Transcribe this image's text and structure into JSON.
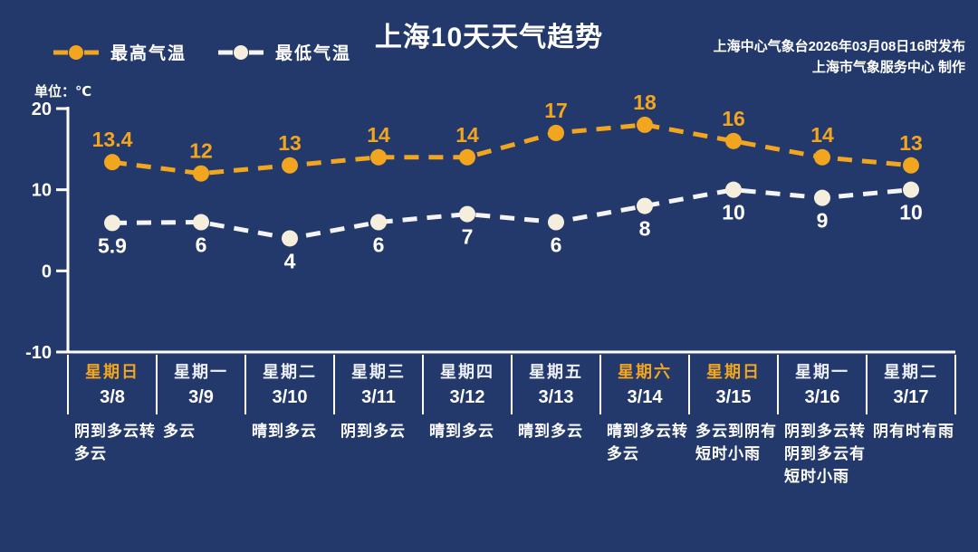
{
  "header": {
    "title": "上海10天天气趋势",
    "source_line1": "上海中心气象台2026年03月08日16时发布",
    "source_line2": "上海市气象服务中心  制作"
  },
  "colors": {
    "background": "#24396b",
    "high_temp": "#f2a61f",
    "low_temp_dot": "#f5eedd",
    "low_temp_line": "#f4f4f4",
    "axis": "#ffffff",
    "weekend_text": "#f2a61f",
    "weekday_text": "#eef0f8",
    "date_text": "#ffffff",
    "weather_text": "#ffffff"
  },
  "chart_data": {
    "type": "line",
    "title": "上海10天天气趋势",
    "ylabel": "单位：℃",
    "ylim": [
      -10,
      20
    ],
    "yticks": [
      20,
      10,
      0,
      -10
    ],
    "grid": false,
    "legend_position": "top-left",
    "x": [
      "3/8",
      "3/9",
      "3/10",
      "3/11",
      "3/12",
      "3/13",
      "3/14",
      "3/15",
      "3/16",
      "3/17"
    ],
    "series": [
      {
        "name": "最高气温",
        "values": [
          13.4,
          12,
          13,
          14,
          14,
          17,
          18,
          16,
          14,
          13
        ],
        "line_color": "#f2a61f",
        "dot_color": "#f2a61f",
        "label_color": "#f2a61f"
      },
      {
        "name": "最低气温",
        "values": [
          5.9,
          6,
          4,
          6,
          7,
          6,
          8,
          10,
          9,
          10
        ],
        "line_color": "#f4f4f4",
        "dot_color": "#f5eedd",
        "label_color": "#ffffff"
      }
    ]
  },
  "days": [
    {
      "weekday": "星期日",
      "date": "3/8",
      "weather": "阴到多云转多云",
      "weekend": true
    },
    {
      "weekday": "星期一",
      "date": "3/9",
      "weather": "多云",
      "weekend": false
    },
    {
      "weekday": "星期二",
      "date": "3/10",
      "weather": "晴到多云",
      "weekend": false
    },
    {
      "weekday": "星期三",
      "date": "3/11",
      "weather": "阴到多云",
      "weekend": false
    },
    {
      "weekday": "星期四",
      "date": "3/12",
      "weather": "晴到多云",
      "weekend": false
    },
    {
      "weekday": "星期五",
      "date": "3/13",
      "weather": "晴到多云",
      "weekend": false
    },
    {
      "weekday": "星期六",
      "date": "3/14",
      "weather": "晴到多云转多云",
      "weekend": true
    },
    {
      "weekday": "星期日",
      "date": "3/15",
      "weather": "多云到阴有短时小雨",
      "weekend": true
    },
    {
      "weekday": "星期一",
      "date": "3/16",
      "weather": "阴到多云转阴到多云有短时小雨",
      "weekend": false
    },
    {
      "weekday": "星期二",
      "date": "3/17",
      "weather": "阴有时有雨",
      "weekend": false
    }
  ]
}
